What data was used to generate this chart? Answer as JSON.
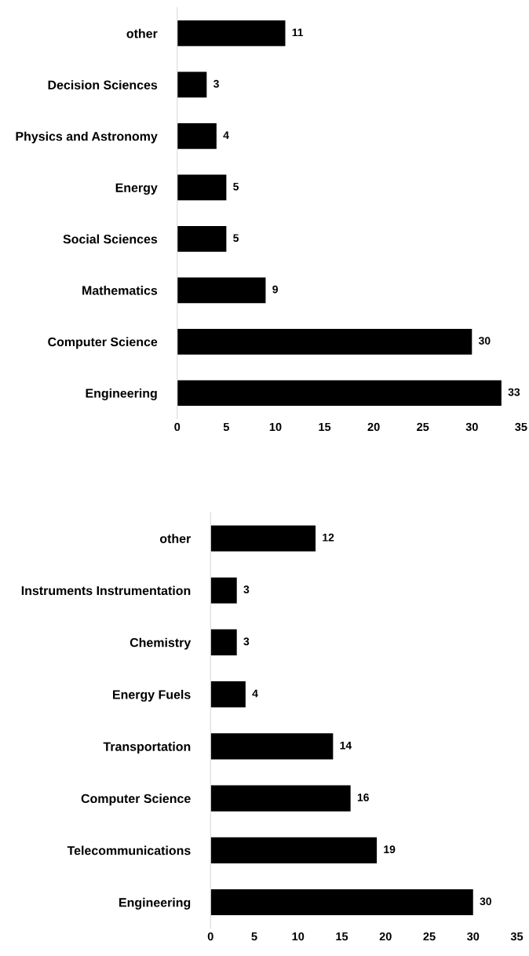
{
  "chart_data": [
    {
      "type": "bar",
      "orientation": "horizontal",
      "categories": [
        "other",
        "Decision Sciences",
        "Physics and Astronomy",
        "Energy",
        "Social Sciences",
        "Mathematics",
        "Computer Science",
        "Engineering"
      ],
      "values": [
        11,
        3,
        4,
        5,
        5,
        9,
        30,
        33
      ],
      "color": "#000000",
      "xlim": [
        0,
        35
      ],
      "xticks": [
        0,
        5,
        10,
        15,
        20,
        25,
        30,
        35
      ],
      "data_labels": true,
      "grid": false,
      "legend": false
    },
    {
      "type": "bar",
      "orientation": "horizontal",
      "categories": [
        "other",
        "Instruments Instrumentation",
        "Chemistry",
        "Energy Fuels",
        "Transportation",
        "Computer Science",
        "Telecommunications",
        "Engineering"
      ],
      "values": [
        12,
        3,
        3,
        4,
        14,
        16,
        19,
        30
      ],
      "color": "#000000",
      "xlim": [
        0,
        35
      ],
      "xticks": [
        0,
        5,
        10,
        15,
        20,
        25,
        30,
        35
      ],
      "data_labels": true,
      "grid": false,
      "legend": false
    }
  ]
}
